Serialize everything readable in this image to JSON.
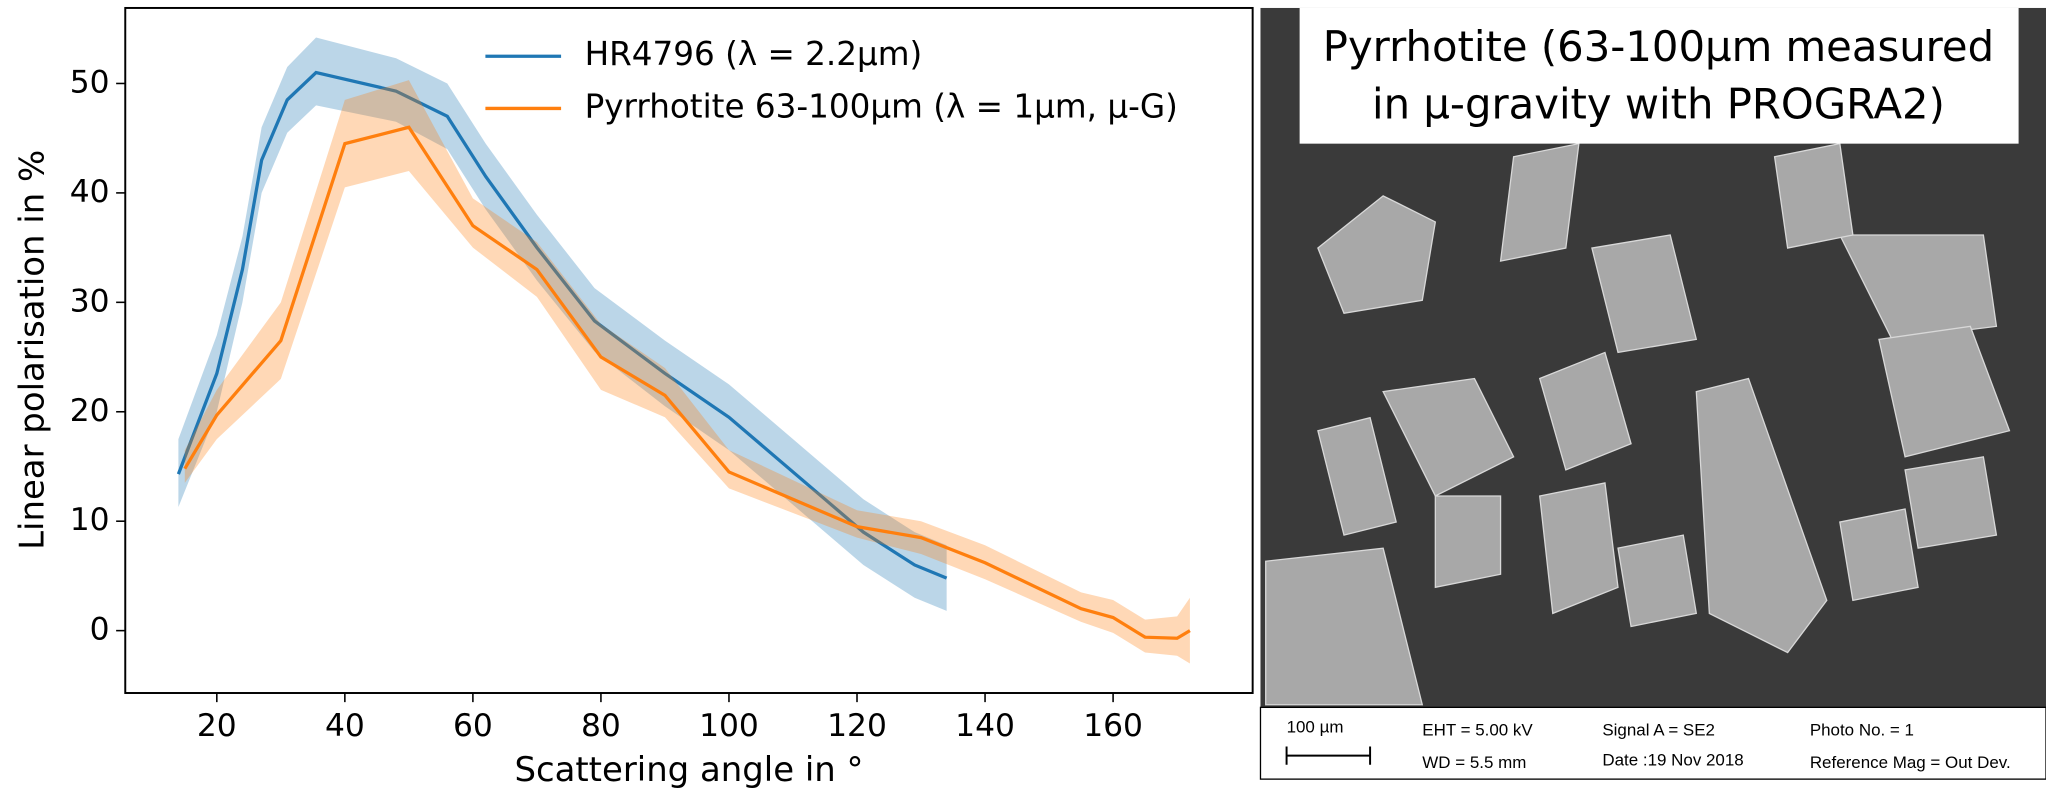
{
  "chart_data": {
    "type": "line",
    "xlabel": "Scattering angle in °",
    "ylabel": "Linear polarisation in %",
    "xlim": [
      5.7,
      181.8
    ],
    "ylim": [
      -5.7,
      56.9
    ],
    "xticks": [
      20,
      40,
      60,
      80,
      100,
      120,
      140,
      160
    ],
    "yticks": [
      0,
      10,
      20,
      30,
      40,
      50
    ],
    "legend": "top",
    "series": [
      {
        "name": "HR4796 (λ = 2.2μm)",
        "color": "#1f77b4",
        "x": [
          14,
          20,
          24,
          27,
          31,
          35.5,
          48,
          56,
          62,
          70,
          79,
          90,
          100,
          104,
          115,
          121,
          129,
          134
        ],
        "values": [
          14.3,
          23.5,
          33,
          43,
          48.5,
          51,
          49.3,
          47,
          41.5,
          35,
          28.3,
          23.5,
          19.5,
          17.5,
          12,
          9,
          6,
          4.8
        ],
        "lower": [
          11.3,
          20,
          30,
          40,
          45.5,
          48,
          46.5,
          44,
          38.5,
          32,
          25.5,
          20.5,
          16.5,
          14.5,
          9,
          6,
          3,
          1.8
        ],
        "upper": [
          17.5,
          27,
          36,
          46,
          51.5,
          54.2,
          52.3,
          50,
          44.5,
          38,
          31.3,
          26.5,
          22.5,
          20.5,
          15,
          12,
          9,
          7.8
        ]
      },
      {
        "name": "Pyrrhotite 63-100μm (λ = 1μm, μ-G)",
        "color": "#ff7f0e",
        "x": [
          15,
          20,
          30,
          40,
          50,
          60,
          70,
          80,
          90,
          100,
          120,
          130,
          140,
          155,
          160,
          165,
          170,
          172
        ],
        "values": [
          14.8,
          19.7,
          26.5,
          44.5,
          46,
          37,
          33,
          25,
          21.5,
          14.5,
          9.5,
          8.5,
          6.2,
          2,
          1.2,
          -0.6,
          -0.7,
          0
        ],
        "lower": [
          13.5,
          17.5,
          23,
          40.5,
          42,
          35,
          30.5,
          22,
          19.5,
          13,
          8.5,
          7,
          4.7,
          0.8,
          -0.2,
          -2,
          -2.3,
          -3
        ],
        "upper": [
          16.5,
          22,
          30,
          48.5,
          50.3,
          39.5,
          35.5,
          28,
          24,
          16.5,
          11,
          10,
          7.8,
          3.5,
          2.8,
          1,
          1.3,
          3
        ]
      }
    ]
  },
  "image_panel": {
    "title_lines": [
      "Pyrrhotite (63-100µm measured",
      "in µ-gravity with PROGRA2)"
    ],
    "scale_bar": "100 µm",
    "info": [
      "EHT =  5.00 kV",
      "WD =  5.5 mm",
      "Signal A = SE2",
      "Date :19 Nov 2018",
      "Photo No. = 1",
      "Reference Mag = Out Dev."
    ]
  }
}
